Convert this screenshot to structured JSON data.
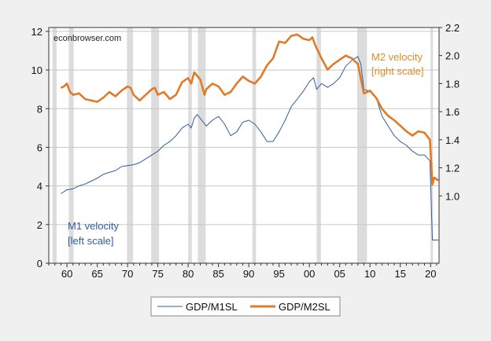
{
  "chart_data": {
    "type": "line",
    "watermark": "econbrowser.com",
    "x_ticks": [
      "60",
      "65",
      "70",
      "75",
      "80",
      "85",
      "90",
      "95",
      "00",
      "05",
      "10",
      "15",
      "20"
    ],
    "x_tick_years": [
      1960,
      1965,
      1970,
      1975,
      1980,
      1985,
      1990,
      1995,
      2000,
      2005,
      2010,
      2015,
      2020
    ],
    "xlim": [
      1957,
      2021.4
    ],
    "left_axis": {
      "ylim": [
        0,
        12.2
      ],
      "ticks": [
        "0",
        "2",
        "4",
        "6",
        "8",
        "10",
        "12"
      ],
      "tick_values": [
        0,
        2,
        4,
        6,
        8,
        10,
        12
      ]
    },
    "right_axis": {
      "ylim": [
        0.52,
        2.2
      ],
      "ticks": [
        "1.0",
        "1.2",
        "1.4",
        "1.6",
        "1.8",
        "2.0",
        "2.2"
      ],
      "tick_values": [
        1.0,
        1.2,
        1.4,
        1.6,
        1.8,
        2.0,
        2.2
      ]
    },
    "grid": true,
    "recessions": [
      [
        1957.6,
        1958.3
      ],
      [
        1960.3,
        1961.1
      ],
      [
        1969.9,
        1970.9
      ],
      [
        1973.9,
        1975.2
      ],
      [
        1980.0,
        1980.6
      ],
      [
        1981.6,
        1982.9
      ],
      [
        1990.6,
        1991.2
      ],
      [
        2001.2,
        2001.9
      ],
      [
        2007.9,
        2009.5
      ],
      [
        2020.0,
        2020.4
      ]
    ],
    "series": [
      {
        "name": "GDP/M1SL",
        "axis": "left",
        "color": "#2e5f9e",
        "annotation": [
          "M1 velocity",
          "[left scale]"
        ],
        "x": [
          1959,
          1960,
          1961,
          1962,
          1963,
          1964,
          1965,
          1966,
          1967,
          1968,
          1969,
          1970,
          1971,
          1972,
          1973,
          1974,
          1975,
          1976,
          1977,
          1978,
          1979,
          1980,
          1980.5,
          1981,
          1981.5,
          1982,
          1983,
          1984,
          1985,
          1986,
          1987,
          1988,
          1989,
          1990,
          1991,
          1992,
          1993,
          1994,
          1995,
          1996,
          1997,
          1998,
          1999,
          2000,
          2000.7,
          2001.2,
          2002,
          2003,
          2004,
          2005,
          2006,
          2007,
          2008,
          2008.5,
          2009,
          2010,
          2011,
          2012,
          2013,
          2014,
          2015,
          2016,
          2017,
          2018,
          2019,
          2019.9,
          2020.3,
          2021.3
        ],
        "y": [
          3.6,
          3.8,
          3.85,
          4.0,
          4.1,
          4.25,
          4.4,
          4.6,
          4.7,
          4.8,
          5.0,
          5.05,
          5.1,
          5.2,
          5.4,
          5.6,
          5.8,
          6.1,
          6.3,
          6.6,
          7.0,
          7.2,
          7.0,
          7.5,
          7.7,
          7.5,
          7.1,
          7.4,
          7.6,
          7.2,
          6.6,
          6.8,
          7.3,
          7.4,
          7.2,
          6.8,
          6.3,
          6.3,
          6.8,
          7.4,
          8.1,
          8.5,
          8.9,
          9.4,
          9.6,
          9.0,
          9.3,
          9.1,
          9.3,
          9.6,
          10.2,
          10.5,
          10.7,
          10.3,
          9.0,
          8.9,
          8.6,
          7.6,
          7.1,
          6.6,
          6.3,
          6.1,
          5.8,
          5.6,
          5.6,
          5.3,
          1.2,
          1.2
        ]
      },
      {
        "name": "GDP/M2SL",
        "axis": "right",
        "color": "#e07b2a",
        "annotation": [
          "M2 velocity",
          "[right scale]"
        ],
        "x": [
          1959,
          1959.5,
          1960,
          1960.5,
          1961,
          1962,
          1963,
          1964,
          1965,
          1966,
          1967,
          1968,
          1969,
          1970,
          1970.5,
          1971,
          1972,
          1973,
          1974,
          1974.5,
          1975,
          1976,
          1977,
          1978,
          1979,
          1980,
          1980.5,
          1981,
          1982,
          1982.7,
          1983,
          1984,
          1985,
          1986,
          1987,
          1988,
          1989,
          1990,
          1991,
          1992,
          1993,
          1994,
          1995,
          1996,
          1997,
          1998,
          1999,
          2000,
          2000.5,
          2001,
          2002,
          2003,
          2004,
          2005,
          2006,
          2007,
          2008,
          2009,
          2010,
          2011,
          2012,
          2013,
          2014,
          2015,
          2016,
          2017,
          2018,
          2019,
          2019.9,
          2020.3,
          2020.6,
          2021.3
        ],
        "y": [
          1.77,
          1.78,
          1.8,
          1.74,
          1.72,
          1.73,
          1.69,
          1.68,
          1.67,
          1.7,
          1.74,
          1.71,
          1.75,
          1.78,
          1.77,
          1.72,
          1.68,
          1.72,
          1.76,
          1.77,
          1.72,
          1.74,
          1.69,
          1.72,
          1.81,
          1.84,
          1.8,
          1.88,
          1.83,
          1.72,
          1.76,
          1.8,
          1.78,
          1.72,
          1.74,
          1.8,
          1.85,
          1.82,
          1.8,
          1.85,
          1.93,
          1.98,
          2.1,
          2.09,
          2.14,
          2.15,
          2.12,
          2.11,
          2.13,
          2.07,
          1.98,
          1.9,
          1.94,
          1.97,
          2.0,
          1.98,
          1.94,
          1.73,
          1.75,
          1.7,
          1.62,
          1.57,
          1.54,
          1.5,
          1.46,
          1.43,
          1.46,
          1.45,
          1.4,
          1.08,
          1.13,
          1.11
        ]
      }
    ]
  }
}
